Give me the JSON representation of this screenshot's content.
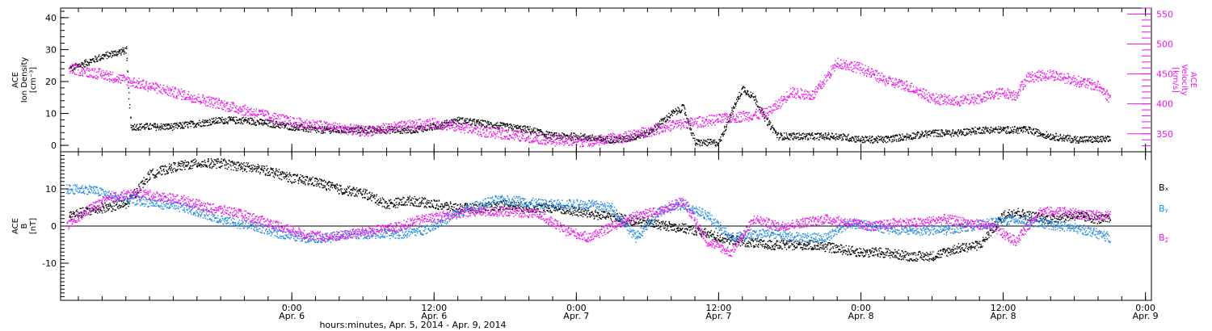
{
  "colors": {
    "black": "#000000",
    "blue": "#1e88e5",
    "magenta": "#ee11ee"
  },
  "footer_label": "hours:minutes, Apr.  5, 2014 - Apr.  9, 2014",
  "x_axis": {
    "range_hours": [
      -19.5,
      72.5
    ],
    "ticks": [
      {
        "hour": 0,
        "time": "0:00",
        "day": "Apr. 6"
      },
      {
        "hour": 12,
        "time": "12:00",
        "day": "Apr. 6"
      },
      {
        "hour": 24,
        "time": "0:00",
        "day": "Apr. 7"
      },
      {
        "hour": 36,
        "time": "12:00",
        "day": "Apr. 7"
      },
      {
        "hour": 48,
        "time": "0:00",
        "day": "Apr. 8"
      },
      {
        "hour": 60,
        "time": "12:00",
        "day": "Apr. 8"
      },
      {
        "hour": 72,
        "time": "0:00",
        "day": "Apr. 9"
      }
    ]
  },
  "chart_data": [
    {
      "type": "scatter",
      "panel": "top",
      "ylabel_left": [
        "ACE",
        "Ion Density",
        "[cm⁻³]"
      ],
      "ylabel_right": [
        "ACE",
        "Velocity",
        "[km/s]"
      ],
      "ylim_left": [
        -2,
        43
      ],
      "left_ticks": [
        0,
        10,
        20,
        30,
        40
      ],
      "ylim_right": [
        320,
        560
      ],
      "right_ticks": [
        350,
        400,
        450,
        500,
        550
      ],
      "series": [
        {
          "axis": "left",
          "color": "black",
          "x": [
            -18.8,
            -16,
            -14,
            -13.6,
            -13,
            -12,
            -10,
            -8,
            -6,
            -4,
            -2,
            0,
            2,
            4,
            6,
            8,
            10,
            12,
            14,
            16,
            18,
            20,
            22,
            24,
            26,
            28,
            30,
            32,
            33,
            34,
            35,
            36,
            37,
            38,
            39,
            40,
            41,
            42,
            44,
            46,
            48,
            50,
            52,
            54,
            56,
            58,
            60,
            62,
            64,
            66,
            68,
            69
          ],
          "y": [
            24,
            28,
            30,
            6,
            6,
            6,
            6,
            7,
            8,
            8,
            7,
            6,
            5,
            5,
            5,
            5,
            5,
            6,
            8,
            7,
            6,
            5,
            3,
            3,
            2,
            2,
            4,
            10,
            12,
            1,
            1,
            1,
            10,
            18,
            15,
            8,
            3,
            3,
            3,
            3,
            2,
            2,
            3,
            4,
            4,
            5,
            5,
            5,
            3,
            2,
            2,
            2
          ]
        },
        {
          "axis": "right",
          "color": "magenta",
          "x": [
            -18.8,
            -16,
            -14,
            -12,
            -10,
            -8,
            -6,
            -4,
            -2,
            0,
            2,
            4,
            6,
            8,
            10,
            12,
            14,
            16,
            18,
            20,
            22,
            24,
            26,
            28,
            30,
            32,
            34,
            36,
            38,
            40,
            41,
            42,
            44,
            46,
            48,
            50,
            52,
            54,
            56,
            58,
            60,
            61,
            62,
            64,
            66,
            68,
            69
          ],
          "y": [
            460,
            450,
            440,
            430,
            420,
            410,
            400,
            390,
            380,
            370,
            365,
            360,
            355,
            360,
            365,
            368,
            363,
            355,
            350,
            345,
            340,
            338,
            340,
            345,
            355,
            365,
            370,
            375,
            380,
            385,
            400,
            420,
            415,
            470,
            460,
            440,
            430,
            410,
            405,
            410,
            420,
            415,
            445,
            450,
            440,
            430,
            410
          ]
        }
      ]
    },
    {
      "type": "scatter",
      "panel": "bottom",
      "ylabel_left": [
        "ACE",
        "B",
        "[nT]"
      ],
      "ylim": [
        -20,
        20
      ],
      "left_ticks": [
        -10,
        0,
        10
      ],
      "legend": [
        {
          "label": "Bₓ",
          "color": "black"
        },
        {
          "label": "Bᵧ",
          "color": "blue"
        },
        {
          "label": "B𝓏",
          "color": "magenta"
        }
      ],
      "series": [
        {
          "name": "Bₓ",
          "color": "black",
          "x": [
            -18.8,
            -16,
            -14,
            -12,
            -10,
            -8,
            -6,
            -4,
            -2,
            0,
            2,
            4,
            6,
            8,
            10,
            12,
            14,
            16,
            18,
            20,
            22,
            24,
            26,
            28,
            30,
            32,
            34,
            36,
            38,
            40,
            42,
            44,
            46,
            48,
            50,
            52,
            54,
            56,
            58,
            60,
            61,
            62,
            64,
            66,
            68,
            69
          ],
          "y": [
            3,
            5,
            6,
            14,
            16,
            17,
            17,
            16,
            15,
            13,
            12,
            10,
            9,
            6,
            7,
            6,
            5,
            5,
            6,
            5,
            5,
            4,
            3,
            2,
            1,
            0,
            -1,
            -3,
            -4,
            -5,
            -5,
            -5,
            -6,
            -7,
            -7,
            -8,
            -8,
            -6,
            -5,
            3,
            4,
            3,
            2,
            3,
            2,
            2
          ]
        },
        {
          "name": "Bᵧ",
          "color": "blue",
          "x": [
            -19,
            -17,
            -15,
            -13,
            -11,
            -9,
            -7,
            -5,
            -3,
            -1,
            1,
            3,
            5,
            7,
            9,
            11,
            13,
            15,
            17,
            19,
            21,
            23,
            25,
            27,
            29,
            31,
            33,
            35,
            37,
            39,
            41,
            43,
            45,
            47,
            49,
            51,
            53,
            55,
            57,
            59,
            61,
            63,
            65,
            67,
            69
          ],
          "y": [
            10,
            10,
            8,
            7,
            6,
            5,
            3,
            1,
            0,
            -2,
            -3,
            -3,
            -2,
            -2,
            -2,
            -1,
            2,
            5,
            7,
            7,
            6,
            6,
            6,
            5,
            -3,
            4,
            6,
            3,
            -3,
            -2,
            -2,
            -3,
            -3,
            1,
            0,
            -1,
            -1,
            -1,
            0,
            1,
            2,
            1,
            0,
            -1,
            -3
          ]
        },
        {
          "name": "B𝓏",
          "color": "magenta",
          "x": [
            -19,
            -17,
            -15,
            -13,
            -11,
            -9,
            -7,
            -5,
            -3,
            -1,
            1,
            3,
            5,
            7,
            9,
            11,
            13,
            15,
            17,
            19,
            21,
            23,
            25,
            27,
            29,
            31,
            33,
            35,
            37,
            39,
            41,
            43,
            45,
            47,
            49,
            51,
            53,
            55,
            57,
            59,
            61,
            63,
            65,
            67,
            69
          ],
          "y": [
            0,
            5,
            8,
            9,
            8,
            7,
            5,
            4,
            2,
            0,
            -2,
            -3,
            -2,
            -1,
            0,
            2,
            3,
            4,
            4,
            4,
            3,
            -1,
            -3,
            0,
            3,
            4,
            7,
            -4,
            -7,
            2,
            0,
            1,
            2,
            1,
            0,
            1,
            1,
            2,
            1,
            0,
            -4,
            4,
            4,
            3,
            3
          ]
        }
      ]
    }
  ]
}
